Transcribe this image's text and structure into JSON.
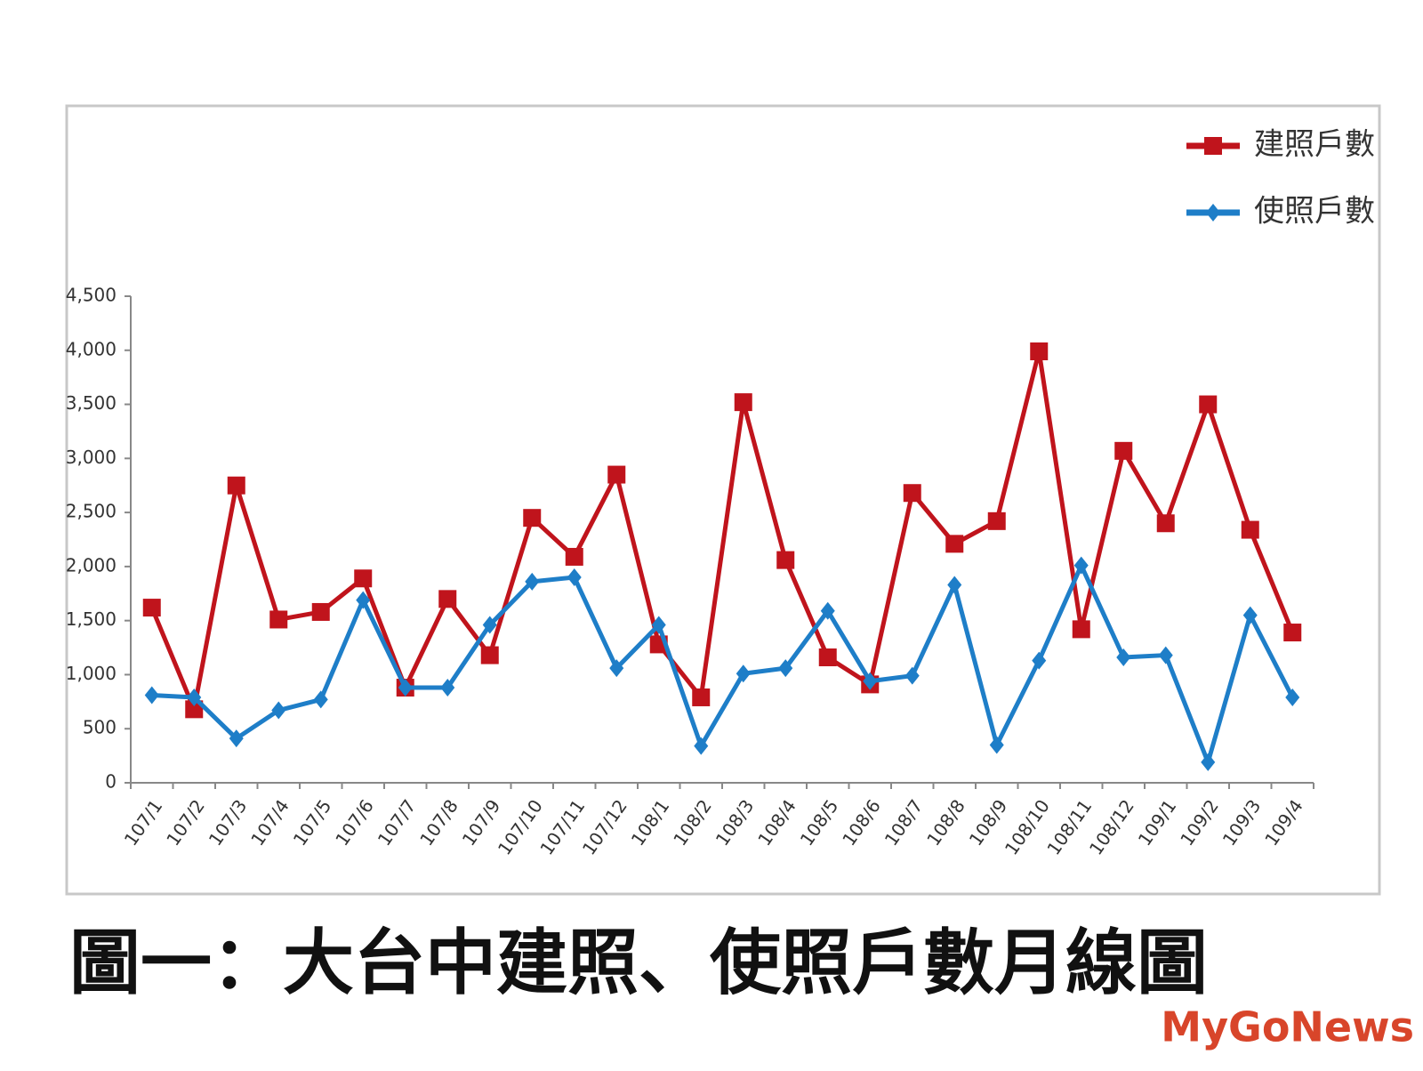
{
  "chart_data": {
    "type": "line",
    "caption": "圖一：大台中建照、使照戶數月線圖",
    "watermark": "MyGoNews",
    "categories": [
      "107/1",
      "107/2",
      "107/3",
      "107/4",
      "107/5",
      "107/6",
      "107/7",
      "107/8",
      "107/9",
      "107/10",
      "107/11",
      "107/12",
      "108/1",
      "108/2",
      "108/3",
      "108/4",
      "108/5",
      "108/6",
      "108/7",
      "108/8",
      "108/9",
      "108/10",
      "108/11",
      "108/12",
      "109/1",
      "109/2",
      "109/3",
      "109/4"
    ],
    "series": [
      {
        "name": "建照戶數",
        "color": "#c0141c",
        "marker": "square",
        "values": [
          1620,
          680,
          2750,
          1510,
          1580,
          1890,
          880,
          1700,
          1180,
          2450,
          2090,
          2850,
          1280,
          790,
          3520,
          2060,
          1160,
          910,
          2680,
          2210,
          2420,
          3990,
          1420,
          3070,
          2400,
          3500,
          2340,
          1390
        ]
      },
      {
        "name": "使照戶數",
        "color": "#1e7ec8",
        "marker": "diamond",
        "values": [
          810,
          790,
          410,
          670,
          770,
          1690,
          880,
          880,
          1460,
          1860,
          1900,
          1060,
          1460,
          340,
          1010,
          1060,
          1590,
          940,
          990,
          1830,
          350,
          1130,
          2010,
          1160,
          1180,
          190,
          1550,
          790
        ]
      }
    ],
    "ylim": [
      0,
      4500
    ],
    "yticks": [
      0,
      500,
      {
        "value": 1000,
        "label": "1,000"
      },
      {
        "value": 1500,
        "label": "1,500"
      },
      {
        "value": 2000,
        "label": "2,000"
      },
      {
        "value": 2500,
        "label": "2,500"
      },
      {
        "value": 3000,
        "label": "3,000"
      },
      {
        "value": 3500,
        "label": "3,500"
      },
      {
        "value": 4000,
        "label": "4,000"
      },
      {
        "value": 4500,
        "label": "4,500"
      }
    ],
    "legend": "top-right",
    "grid": false
  }
}
